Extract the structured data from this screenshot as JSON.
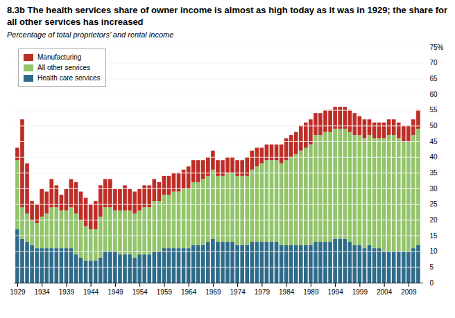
{
  "chart_data": {
    "type": "bar",
    "stacked": true,
    "title": "8.3b The health services share of owner income is almost as high today as it was in 1929; the share for all other services has increased",
    "subtitle": "Percentage of total proprietors’ and rental income",
    "x": [
      1929,
      1930,
      1931,
      1932,
      1933,
      1934,
      1935,
      1936,
      1937,
      1938,
      1939,
      1940,
      1941,
      1942,
      1943,
      1944,
      1945,
      1946,
      1947,
      1948,
      1949,
      1950,
      1951,
      1952,
      1953,
      1954,
      1955,
      1956,
      1957,
      1958,
      1959,
      1960,
      1961,
      1962,
      1963,
      1964,
      1965,
      1966,
      1967,
      1968,
      1969,
      1970,
      1971,
      1972,
      1973,
      1974,
      1975,
      1976,
      1977,
      1978,
      1979,
      1980,
      1981,
      1982,
      1983,
      1984,
      1985,
      1986,
      1987,
      1988,
      1989,
      1990,
      1991,
      1992,
      1993,
      1994,
      1995,
      1996,
      1997,
      1998,
      1999,
      2000,
      2001,
      2002,
      2003,
      2004,
      2005,
      2006,
      2007,
      2008,
      2009,
      2010,
      2011
    ],
    "series": [
      {
        "name": "Health care services",
        "color": "#2e6b8a",
        "values": [
          17,
          14,
          13,
          12,
          11,
          11,
          11,
          11,
          11,
          11,
          11,
          11,
          9,
          8,
          7,
          7,
          7,
          8,
          10,
          10,
          10,
          9,
          9,
          9,
          8,
          9,
          9,
          9,
          10,
          10,
          11,
          11,
          11,
          11,
          11,
          11,
          12,
          12,
          12,
          13,
          14,
          13,
          13,
          13,
          13,
          12,
          12,
          12,
          13,
          13,
          13,
          13,
          13,
          13,
          12,
          12,
          12,
          12,
          12,
          12,
          12,
          13,
          13,
          13,
          13,
          14,
          14,
          14,
          13,
          12,
          12,
          11,
          12,
          11,
          11,
          10,
          10,
          10,
          10,
          10,
          10,
          11,
          12
        ]
      },
      {
        "name": "All other services",
        "color": "#92c46a",
        "values": [
          22,
          10,
          9,
          8,
          8,
          10,
          11,
          13,
          13,
          12,
          12,
          13,
          13,
          12,
          11,
          10,
          10,
          13,
          14,
          14,
          13,
          14,
          14,
          14,
          14,
          14,
          15,
          15,
          16,
          16,
          17,
          17,
          18,
          18,
          19,
          19,
          20,
          20,
          21,
          21,
          22,
          21,
          21,
          22,
          22,
          22,
          22,
          22,
          23,
          24,
          25,
          26,
          26,
          26,
          26,
          27,
          28,
          29,
          30,
          31,
          32,
          34,
          34,
          35,
          35,
          35,
          35,
          35,
          35,
          35,
          35,
          35,
          35,
          35,
          35,
          36,
          37,
          37,
          36,
          35,
          35,
          36,
          37
        ]
      },
      {
        "name": "Manufacturing",
        "color": "#be2d26",
        "values": [
          4,
          28,
          16,
          6,
          6,
          9,
          7,
          9,
          7,
          5,
          7,
          9,
          10,
          9,
          9,
          8,
          9,
          10,
          9,
          9,
          7,
          7,
          8,
          7,
          7,
          7,
          7,
          7,
          7,
          6,
          6,
          6,
          6,
          6,
          6,
          7,
          7,
          7,
          6,
          6,
          6,
          5,
          5,
          5,
          5,
          5,
          5,
          6,
          6,
          6,
          5,
          5,
          5,
          5,
          6,
          7,
          7,
          7,
          8,
          8,
          8,
          7,
          7,
          7,
          7,
          7,
          7,
          7,
          7,
          7,
          6,
          6,
          5,
          5,
          5,
          5,
          5,
          5,
          5,
          5,
          5,
          5,
          6
        ]
      }
    ],
    "xlim": [
      1928.3,
      2012
    ],
    "xticks": [
      1929,
      1934,
      1939,
      1944,
      1949,
      1954,
      1959,
      1964,
      1969,
      1974,
      1979,
      1984,
      1989,
      1994,
      1999,
      2004,
      2009
    ],
    "ylim": [
      0,
      75
    ],
    "yticks": [
      0,
      5,
      10,
      15,
      20,
      25,
      30,
      35,
      40,
      45,
      50,
      55,
      60,
      65,
      70,
      {
        "value": 75,
        "label": "75%"
      }
    ],
    "grid": true,
    "legend": "upper left"
  }
}
